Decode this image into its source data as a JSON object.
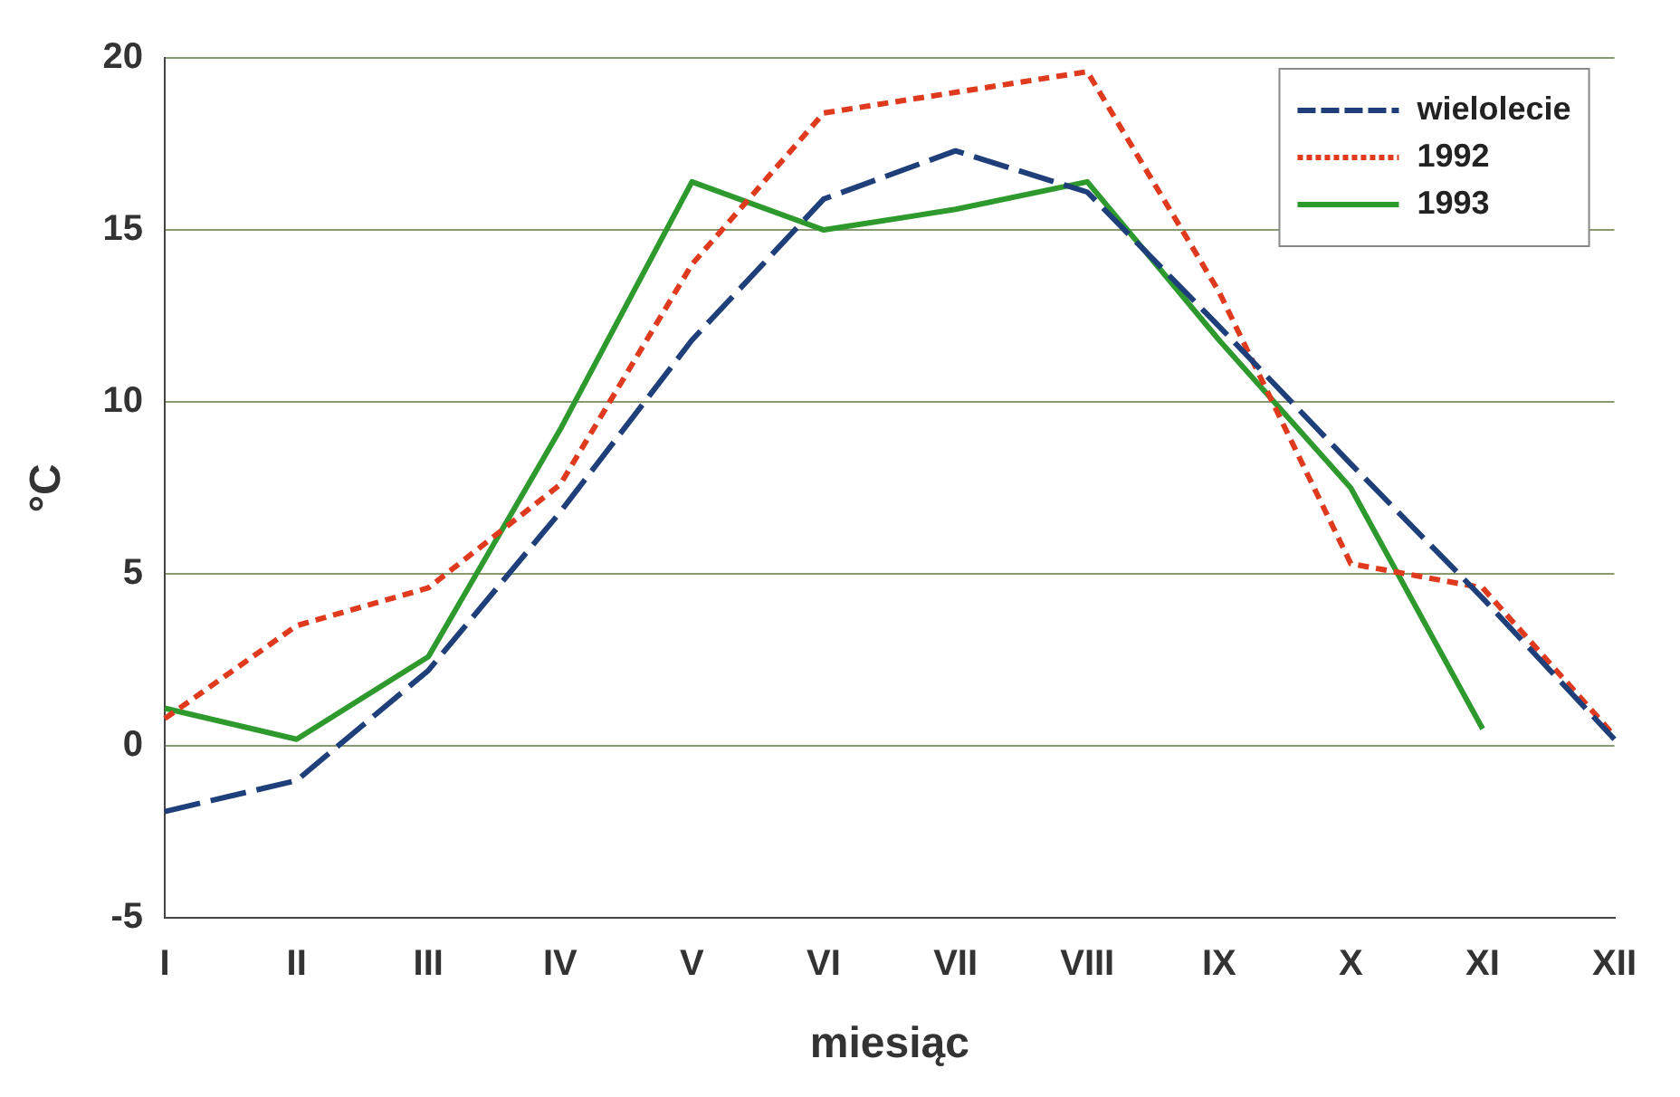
{
  "chart_data": {
    "type": "line",
    "xlabel": "miesiąc",
    "ylabel": "°C",
    "categories": [
      "I",
      "II",
      "III",
      "IV",
      "V",
      "VI",
      "VII",
      "VIII",
      "IX",
      "X",
      "XI",
      "XII"
    ],
    "series": [
      {
        "name": "wielolecie",
        "color": "#1f3f7a",
        "line_style": "dashed",
        "values": [
          -1.9,
          -1.0,
          2.2,
          6.8,
          11.8,
          15.9,
          17.3,
          16.1,
          12.2,
          8.2,
          4.3,
          0.2
        ]
      },
      {
        "name": "1992",
        "color": "#e03a1e",
        "line_style": "dotted",
        "values": [
          0.8,
          3.5,
          4.6,
          7.6,
          14.0,
          18.4,
          19.0,
          19.6,
          13.2,
          5.3,
          4.6,
          0.3
        ]
      },
      {
        "name": "1993",
        "color": "#2e9a2e",
        "line_style": "solid",
        "values": [
          1.1,
          0.2,
          2.6,
          9.2,
          16.4,
          15.0,
          15.6,
          16.4,
          11.8,
          7.5,
          0.5,
          null
        ]
      }
    ],
    "ylim": [
      -5,
      20
    ],
    "yticks": [
      -5,
      0,
      5,
      10,
      15,
      20
    ],
    "grid": "y",
    "legend": "top right",
    "marker": "none"
  }
}
